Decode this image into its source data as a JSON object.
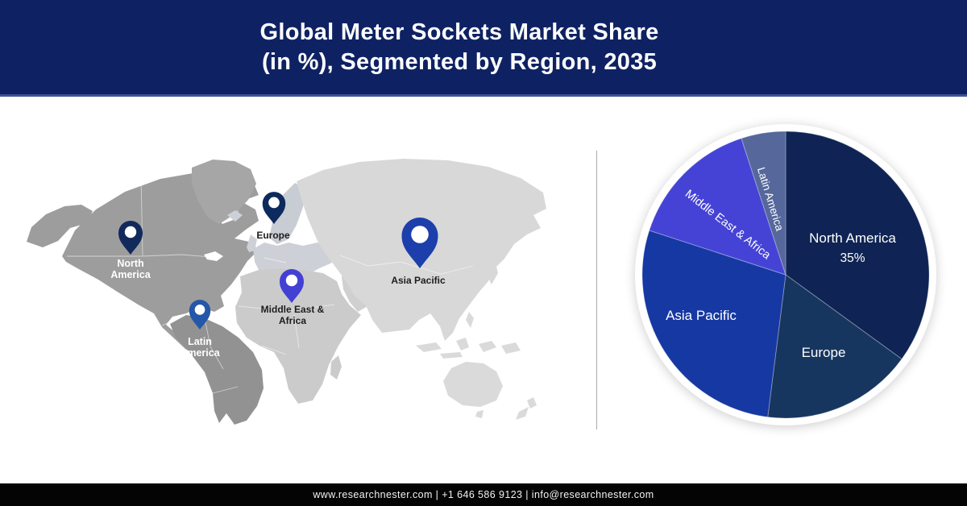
{
  "header": {
    "title_line1": "Global Meter Sockets Market Share",
    "title_line2": "(in %), Segmented by Region, 2035",
    "bg_color": "#0e2263"
  },
  "map": {
    "pins": [
      {
        "region": "north-america",
        "lines": [
          "North",
          "America"
        ],
        "pin_color": "#12295c",
        "label_style": "light"
      },
      {
        "region": "europe",
        "lines": [
          "Europe"
        ],
        "pin_color": "#0d2a5e",
        "label_style": "dark"
      },
      {
        "region": "latin-america",
        "lines": [
          "Latin",
          "America"
        ],
        "pin_color": "#2557a8",
        "label_style": "light"
      },
      {
        "region": "middle-east-africa",
        "lines": [
          "Middle East &",
          "Africa"
        ],
        "pin_color": "#4340d4",
        "label_style": "dark"
      },
      {
        "region": "asia-pacific",
        "lines": [
          "Asia Pacific"
        ],
        "pin_color": "#1c3fab",
        "label_style": "dark"
      }
    ]
  },
  "chart_data": {
    "type": "pie",
    "title": "Global Meter Sockets Market Share (in %), Segmented by Region, 2035",
    "start_angle_deg": 0,
    "direction": "clockwise",
    "legend_position": "labels-inside-slices",
    "segments": [
      {
        "label": "North America",
        "value": 35,
        "color": "#0f2454",
        "value_label": "35%"
      },
      {
        "label": "Europe",
        "value": 17,
        "color": "#17365f",
        "value_label": ""
      },
      {
        "label": "Asia Pacific",
        "value": 28,
        "color": "#1638a2",
        "value_label": ""
      },
      {
        "label": "Middle East & Africa",
        "value": 15,
        "color": "#4543d6",
        "value_label": ""
      },
      {
        "label": "Latin America",
        "value": 5,
        "color": "#55679b",
        "value_label": ""
      }
    ]
  },
  "footer": {
    "text": "www.researchnester.com | +1 646 586 9123 | info@researchnester.com"
  }
}
